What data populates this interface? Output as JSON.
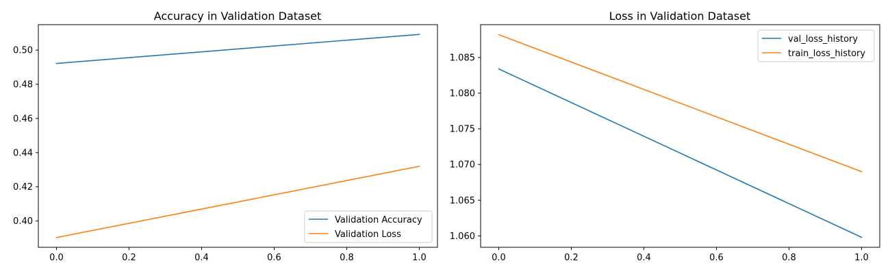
{
  "chart_data": [
    {
      "type": "line",
      "title": "Accuracy in Validation Dataset",
      "xlabel": "",
      "ylabel": "",
      "xlim": [
        -0.05,
        1.05
      ],
      "ylim": [
        0.3846,
        0.5149
      ],
      "xticks": [
        0.0,
        0.2,
        0.4,
        0.6,
        0.8,
        1.0
      ],
      "xtick_labels": [
        "0.0",
        "0.2",
        "0.4",
        "0.6",
        "0.8",
        "1.0"
      ],
      "yticks": [
        0.4,
        0.42,
        0.44,
        0.46,
        0.48,
        0.5
      ],
      "ytick_labels": [
        "0.40",
        "0.42",
        "0.44",
        "0.46",
        "0.48",
        "0.50"
      ],
      "grid": false,
      "legend_position": "lower-right",
      "series": [
        {
          "name": "Validation Accuracy",
          "color": "#1f77b4",
          "x": [
            0,
            1
          ],
          "y": [
            0.4922,
            0.5092
          ]
        },
        {
          "name": "Validation Loss",
          "color": "#ff7f0e",
          "x": [
            0,
            1
          ],
          "y": [
            0.3903,
            0.432
          ]
        }
      ]
    },
    {
      "type": "line",
      "title": "Loss in Validation Dataset",
      "xlabel": "",
      "ylabel": "",
      "xlim": [
        -0.05,
        1.05
      ],
      "ylim": [
        1.0584,
        1.0896
      ],
      "xticks": [
        0.0,
        0.2,
        0.4,
        0.6,
        0.8,
        1.0
      ],
      "xtick_labels": [
        "0.0",
        "0.2",
        "0.4",
        "0.6",
        "0.8",
        "1.0"
      ],
      "yticks": [
        1.06,
        1.065,
        1.07,
        1.075,
        1.08,
        1.085
      ],
      "ytick_labels": [
        "1.060",
        "1.065",
        "1.070",
        "1.075",
        "1.080",
        "1.085"
      ],
      "grid": false,
      "legend_position": "upper-right",
      "series": [
        {
          "name": "val_loss_history",
          "color": "#1f77b4",
          "x": [
            0,
            1
          ],
          "y": [
            1.0834,
            1.0598
          ]
        },
        {
          "name": "train_loss_history",
          "color": "#ff7f0e",
          "x": [
            0,
            1
          ],
          "y": [
            1.0882,
            1.069
          ]
        }
      ]
    }
  ]
}
